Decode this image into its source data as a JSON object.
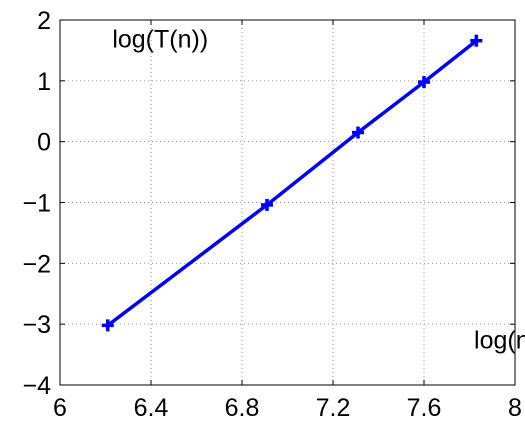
{
  "chart_data": {
    "type": "line",
    "title": "",
    "xlabel": "",
    "ylabel": "",
    "xlim": [
      6,
      8
    ],
    "ylim": [
      -4,
      2
    ],
    "xticks": [
      6,
      6.4,
      6.8,
      7.2,
      7.6,
      8
    ],
    "xtick_labels": [
      "6",
      "6.4",
      "6.8",
      "7.2",
      "7.6",
      "8"
    ],
    "yticks": [
      -4,
      -3,
      -2,
      -1,
      0,
      1,
      2
    ],
    "ytick_labels": [
      "−4",
      "−3",
      "−2",
      "−1",
      "0",
      "1",
      "2"
    ],
    "grid": true,
    "series": [
      {
        "x": [
          6.21,
          6.91,
          7.31,
          7.6,
          7.83
        ],
        "y": [
          -3.02,
          -1.04,
          0.15,
          0.98,
          1.66
        ],
        "color": "#0000ff",
        "marker": "plus"
      }
    ],
    "annotations": [
      {
        "text": "log(T(n))",
        "x": 6.23,
        "y": 1.55
      },
      {
        "text": "log(n)",
        "x": 7.82,
        "y": -3.4
      }
    ]
  }
}
